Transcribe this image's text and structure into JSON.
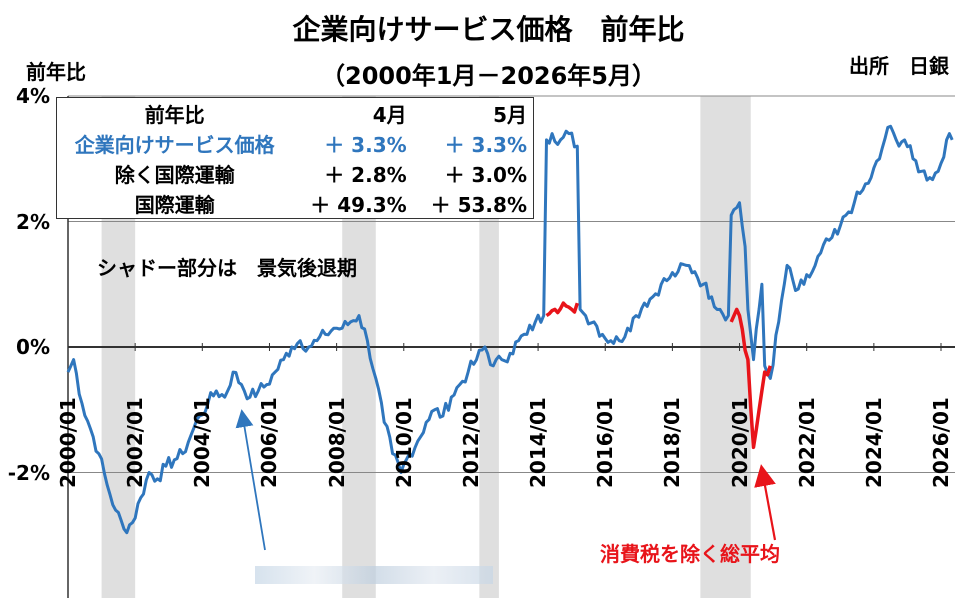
{
  "title_line1": "企業向けサービス価格　前年比",
  "title_line2": "（2000年1月－2026年5月）",
  "unit_label": "前年比",
  "source": "出所　日銀",
  "note": "シャドー部分は　景気後退期",
  "tax_note": "消費税を除く総平均",
  "legend": {
    "header": [
      "前年比",
      "4月",
      "5月"
    ],
    "rows": [
      {
        "label": "企業向けサービス価格",
        "apr": "＋ 3.3%",
        "may": "＋ 3.3%",
        "color": "#2f76bd"
      },
      {
        "label": "除く国際運輸",
        "apr": "＋ 2.8%",
        "may": "＋ 3.0%",
        "color": "#000000"
      },
      {
        "label": "国際運輸",
        "apr": "＋ 49.3%",
        "may": "＋ 53.8%",
        "color": "#000000"
      }
    ]
  },
  "colors": {
    "main_line": "#2f76bd",
    "tax_excluded_line": "#e8141a",
    "shade": "#d9d9d9",
    "blue_arrow": "#2f76bd",
    "red_arrow": "#e8141a"
  },
  "chart_data": {
    "type": "line",
    "xlabel": "",
    "ylabel": "前年比",
    "ylim": [
      -4,
      4
    ],
    "yticks": [
      "4%",
      "2%",
      "0%",
      "-2%"
    ],
    "xticks": [
      "2000/01",
      "2002/01",
      "2004/01",
      "2006/01",
      "2008/01",
      "2010/01",
      "2012/01",
      "2014/01",
      "2016/01",
      "2018/01",
      "2020/01",
      "2022/01",
      "2024/01",
      "2026/01"
    ],
    "recessions": [
      [
        "2001-01",
        "2002-01"
      ],
      [
        "2008-03",
        "2009-03"
      ],
      [
        "2012-04",
        "2012-11"
      ],
      [
        "2018-11",
        "2020-05"
      ]
    ],
    "series": [
      {
        "name": "企業向けサービス価格",
        "points": [
          [
            "2000-01",
            -0.4
          ],
          [
            "2000-03",
            -0.2
          ],
          [
            "2000-06",
            -0.9
          ],
          [
            "2000-09",
            -1.3
          ],
          [
            "2000-12",
            -1.7
          ],
          [
            "2001-03",
            -2.2
          ],
          [
            "2001-06",
            -2.6
          ],
          [
            "2001-09",
            -2.9
          ],
          [
            "2001-12",
            -2.8
          ],
          [
            "2002-03",
            -2.4
          ],
          [
            "2002-06",
            -2.0
          ],
          [
            "2002-09",
            -2.1
          ],
          [
            "2002-12",
            -1.9
          ],
          [
            "2003-03",
            -1.8
          ],
          [
            "2003-06",
            -1.7
          ],
          [
            "2003-09",
            -1.4
          ],
          [
            "2003-12",
            -1.1
          ],
          [
            "2004-03",
            -0.9
          ],
          [
            "2004-06",
            -0.7
          ],
          [
            "2004-09",
            -0.8
          ],
          [
            "2004-12",
            -0.4
          ],
          [
            "2005-03",
            -0.6
          ],
          [
            "2005-06",
            -0.8
          ],
          [
            "2005-09",
            -0.7
          ],
          [
            "2005-12",
            -0.6
          ],
          [
            "2006-03",
            -0.4
          ],
          [
            "2006-06",
            -0.2
          ],
          [
            "2006-09",
            0.0
          ],
          [
            "2006-12",
            0.1
          ],
          [
            "2007-03",
            0.0
          ],
          [
            "2007-06",
            0.1
          ],
          [
            "2007-09",
            0.2
          ],
          [
            "2007-12",
            0.3
          ],
          [
            "2008-03",
            0.3
          ],
          [
            "2008-06",
            0.4
          ],
          [
            "2008-09",
            0.5
          ],
          [
            "2008-12",
            0.1
          ],
          [
            "2009-03",
            -0.5
          ],
          [
            "2009-06",
            -1.2
          ],
          [
            "2009-09",
            -1.7
          ],
          [
            "2009-12",
            -2.0
          ],
          [
            "2010-03",
            -1.7
          ],
          [
            "2010-06",
            -1.5
          ],
          [
            "2010-09",
            -1.2
          ],
          [
            "2010-12",
            -1.0
          ],
          [
            "2011-03",
            -1.1
          ],
          [
            "2011-06",
            -0.8
          ],
          [
            "2011-09",
            -0.6
          ],
          [
            "2011-12",
            -0.4
          ],
          [
            "2012-03",
            -0.2
          ],
          [
            "2012-06",
            0.0
          ],
          [
            "2012-09",
            -0.3
          ],
          [
            "2012-12",
            -0.2
          ],
          [
            "2013-03",
            -0.1
          ],
          [
            "2013-06",
            0.1
          ],
          [
            "2013-09",
            0.2
          ],
          [
            "2013-12",
            0.4
          ],
          [
            "2014-03",
            0.5
          ],
          [
            "2014-04",
            3.3
          ],
          [
            "2014-06",
            3.4
          ],
          [
            "2014-09",
            3.3
          ],
          [
            "2014-12",
            3.4
          ],
          [
            "2015-03",
            3.2
          ],
          [
            "2015-04",
            0.6
          ],
          [
            "2015-06",
            0.5
          ],
          [
            "2015-09",
            0.4
          ],
          [
            "2015-12",
            0.2
          ],
          [
            "2016-03",
            0.1
          ],
          [
            "2016-06",
            0.1
          ],
          [
            "2016-09",
            0.3
          ],
          [
            "2016-12",
            0.5
          ],
          [
            "2017-03",
            0.7
          ],
          [
            "2017-06",
            0.8
          ],
          [
            "2017-09",
            1.0
          ],
          [
            "2017-12",
            1.1
          ],
          [
            "2018-03",
            1.2
          ],
          [
            "2018-06",
            1.3
          ],
          [
            "2018-09",
            1.2
          ],
          [
            "2018-12",
            1.0
          ],
          [
            "2019-03",
            0.8
          ],
          [
            "2019-06",
            0.6
          ],
          [
            "2019-09",
            0.5
          ],
          [
            "2019-10",
            2.1
          ],
          [
            "2020-01",
            2.3
          ],
          [
            "2020-03",
            1.6
          ],
          [
            "2020-04",
            0.6
          ],
          [
            "2020-06",
            -0.2
          ],
          [
            "2020-09",
            1.0
          ],
          [
            "2020-10",
            -0.3
          ],
          [
            "2020-12",
            -0.5
          ],
          [
            "2021-03",
            0.4
          ],
          [
            "2021-06",
            1.3
          ],
          [
            "2021-09",
            0.9
          ],
          [
            "2021-12",
            1.0
          ],
          [
            "2022-03",
            1.2
          ],
          [
            "2022-06",
            1.5
          ],
          [
            "2022-09",
            1.7
          ],
          [
            "2022-12",
            1.8
          ],
          [
            "2023-03",
            2.1
          ],
          [
            "2023-06",
            2.3
          ],
          [
            "2023-09",
            2.5
          ],
          [
            "2023-12",
            2.7
          ],
          [
            "2024-03",
            3.0
          ],
          [
            "2024-06",
            3.5
          ],
          [
            "2024-09",
            3.3
          ],
          [
            "2024-12",
            3.3
          ],
          [
            "2025-03",
            3.0
          ],
          [
            "2025-06",
            2.8
          ],
          [
            "2025-09",
            2.7
          ],
          [
            "2025-12",
            2.8
          ],
          [
            "2026-03",
            3.3
          ],
          [
            "2026-05",
            3.3
          ]
        ]
      },
      {
        "name": "消費税を除く総平均",
        "segments": [
          [
            [
              "2014-04",
              0.5
            ],
            [
              "2014-07",
              0.6
            ],
            [
              "2014-10",
              0.7
            ],
            [
              "2015-01",
              0.6
            ],
            [
              "2015-03",
              0.7
            ]
          ],
          [
            [
              "2019-10",
              0.4
            ],
            [
              "2019-12",
              0.6
            ],
            [
              "2020-01",
              0.5
            ],
            [
              "2020-04",
              -0.2
            ],
            [
              "2020-06",
              -1.6
            ],
            [
              "2020-08",
              -1.0
            ],
            [
              "2020-10",
              -0.4
            ],
            [
              "2020-12",
              -0.3
            ]
          ]
        ]
      }
    ]
  }
}
